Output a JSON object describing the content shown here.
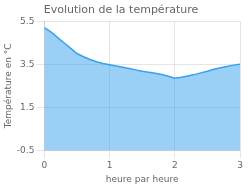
{
  "chart_data": {
    "type": "area",
    "title": "Evolution de la température",
    "xlabel": "heure par heure",
    "ylabel": "Température en °C",
    "x": [
      0.0,
      0.1,
      0.2,
      0.3,
      0.4,
      0.5,
      0.6,
      0.7,
      0.8,
      0.9,
      1.0,
      1.1,
      1.2,
      1.3,
      1.4,
      1.5,
      1.6,
      1.7,
      1.8,
      1.9,
      2.0,
      2.1,
      2.2,
      2.3,
      2.4,
      2.5,
      2.6,
      2.7,
      2.8,
      2.9,
      3.0
    ],
    "values": [
      5.2,
      5.0,
      4.75,
      4.5,
      4.25,
      4.0,
      3.85,
      3.72,
      3.62,
      3.54,
      3.48,
      3.42,
      3.36,
      3.3,
      3.24,
      3.18,
      3.13,
      3.08,
      3.02,
      2.94,
      2.85,
      2.9,
      2.96,
      3.02,
      3.1,
      3.18,
      3.27,
      3.34,
      3.4,
      3.46,
      3.5
    ],
    "xlim": [
      0,
      3
    ],
    "ylim": [
      -0.5,
      5.5
    ],
    "xticks": [
      0,
      1,
      2,
      3
    ],
    "yticks": [
      -0.5,
      1.5,
      3.5,
      5.5
    ],
    "grid": true
  }
}
